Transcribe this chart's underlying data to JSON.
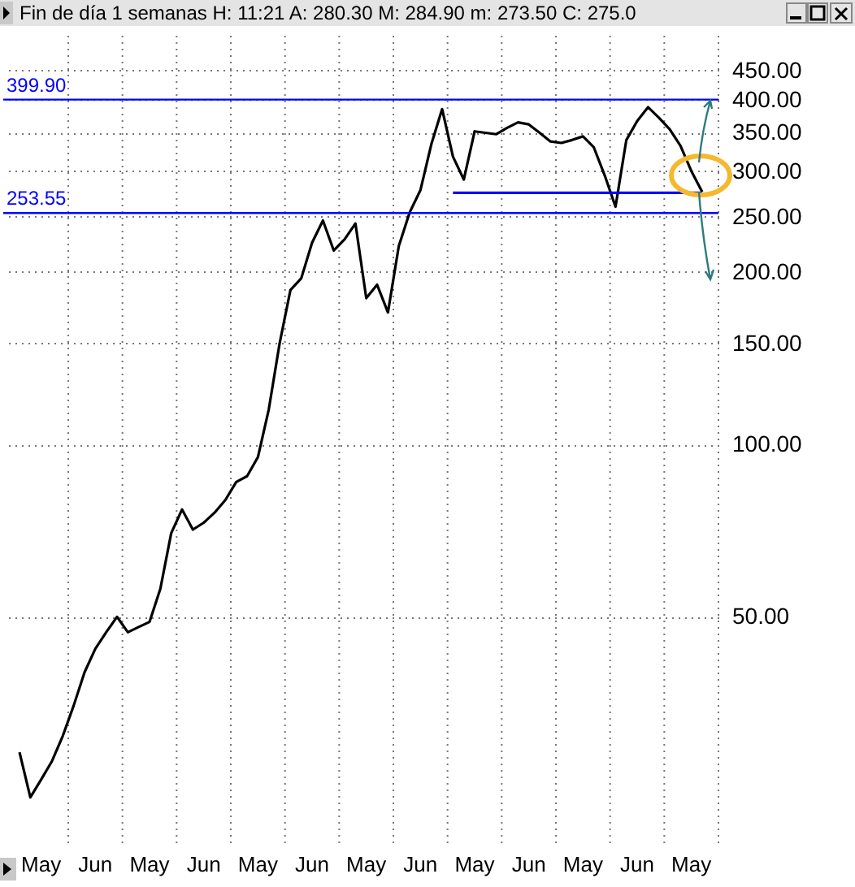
{
  "chart_data": {
    "type": "line",
    "title": "Fin de día 1 semanas  H: 11:21  A: 280.30  M: 284.90  m: 273.50  C: 275.0",
    "categories": [
      null,
      null,
      null,
      "May",
      null,
      null,
      null,
      null,
      "Jun",
      null,
      null,
      null,
      null,
      "May",
      null,
      null,
      null,
      null,
      "Jun",
      null,
      null,
      null,
      null,
      "May",
      null,
      null,
      null,
      null,
      "Jun",
      null,
      null,
      null,
      null,
      "May",
      null,
      null,
      null,
      null,
      "Jun",
      null,
      null,
      null,
      null,
      "May",
      null,
      null,
      null,
      null,
      "Jun",
      null,
      null,
      null,
      null,
      "May",
      null,
      null,
      null,
      null,
      "Jun",
      null,
      null,
      null,
      null,
      "May",
      null,
      null
    ],
    "series": [
      {
        "color": "#000000",
        "values": [
          null,
          29,
          24.2,
          26,
          28,
          31,
          35,
          40,
          44,
          47,
          50,
          47,
          48,
          49,
          56,
          70,
          77,
          71,
          73,
          76,
          80,
          86,
          88,
          95,
          115,
          150,
          186,
          195,
          225,
          246,
          218,
          228,
          243,
          180,
          190,
          170,
          222,
          254,
          278,
          334,
          385,
          318,
          290,
          352,
          350,
          348,
          357,
          365,
          362,
          350,
          338,
          336,
          340,
          345,
          330,
          295,
          260,
          340,
          367,
          388,
          372,
          355,
          332,
          300,
          276,
          null
        ]
      },
      {
        "color": "#0000ff",
        "values": [
          null,
          null,
          null,
          null,
          null,
          null,
          null,
          null,
          null,
          null,
          null,
          null,
          null,
          null,
          null,
          null,
          null,
          null,
          null,
          null,
          null,
          null,
          null,
          null,
          null,
          null,
          null,
          null,
          null,
          null,
          null,
          null,
          null,
          null,
          null,
          null,
          null,
          null,
          null,
          null,
          null,
          275,
          275,
          275,
          275,
          275,
          275,
          275,
          275,
          275,
          275,
          275,
          275,
          275,
          275,
          275,
          275,
          275,
          275,
          275,
          275,
          275,
          275,
          275,
          275,
          null
        ]
      }
    ],
    "ylim": [
      20,
      517
    ],
    "log": true,
    "yticks": [
      {
        "value": 50,
        "label": "50.00"
      },
      {
        "value": 100,
        "label": "100.00"
      },
      {
        "value": 150,
        "label": "150.00"
      },
      {
        "value": 200,
        "label": "200.00"
      },
      {
        "value": 250,
        "label": "250.00"
      },
      {
        "value": 300,
        "label": "300.00"
      },
      {
        "value": 350,
        "label": "350.00"
      },
      {
        "value": 400,
        "label": "400.00"
      },
      {
        "value": 450,
        "label": "450.00"
      }
    ],
    "grid": true,
    "ref_lines": [
      {
        "axis": "y",
        "value": 399.9,
        "label": "399.90",
        "color": "#0000ff"
      },
      {
        "axis": "y",
        "value": 253.55,
        "label": "253.55",
        "color": "#0000ff"
      }
    ]
  }
}
